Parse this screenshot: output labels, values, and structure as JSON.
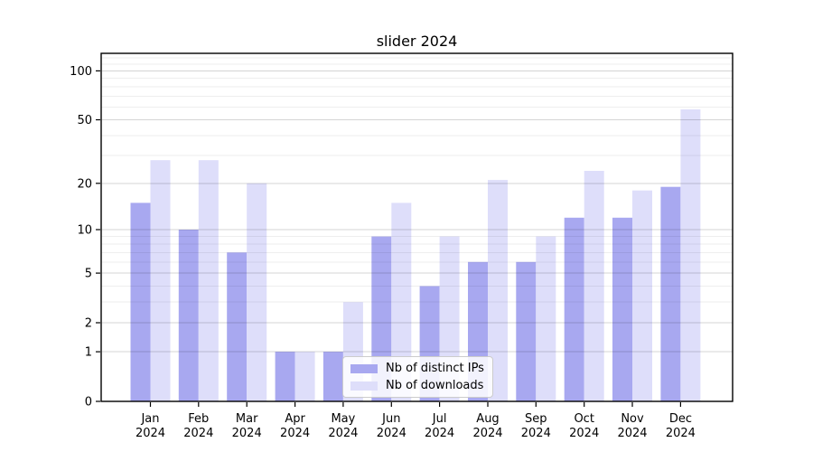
{
  "chart_data": {
    "type": "bar",
    "title": "slider 2024",
    "scale": "log1p",
    "categories": [
      "Jan",
      "Feb",
      "Mar",
      "Apr",
      "May",
      "Jun",
      "Jul",
      "Aug",
      "Sep",
      "Oct",
      "Nov",
      "Dec"
    ],
    "x_year": "2024",
    "series": [
      {
        "name": "Nb of distinct IPs",
        "color": "#a8a8f0",
        "values": [
          15,
          10,
          7,
          1,
          1,
          9,
          4,
          6,
          6,
          12,
          12,
          19
        ]
      },
      {
        "name": "Nb of downloads",
        "color": "#dedefa",
        "values": [
          28,
          28,
          20,
          1,
          3,
          15,
          9,
          21,
          9,
          24,
          18,
          58
        ]
      }
    ],
    "yticks": [
      0,
      1,
      2,
      5,
      10,
      20,
      50,
      100
    ],
    "minor_yticks": [
      3,
      4,
      6,
      7,
      8,
      9,
      30,
      40,
      60,
      70,
      80,
      90,
      110,
      120
    ],
    "ylim": [
      0,
      128
    ],
    "grid": true,
    "legend_position": "lower center"
  },
  "colors": {
    "background": "#ffffff",
    "axis": "#000000",
    "major_grid": "rgba(0,0,0,0.17)",
    "minor_grid": "rgba(0,0,0,0.065)",
    "legend_border": "#cccccc",
    "tick_text": "#000000"
  }
}
